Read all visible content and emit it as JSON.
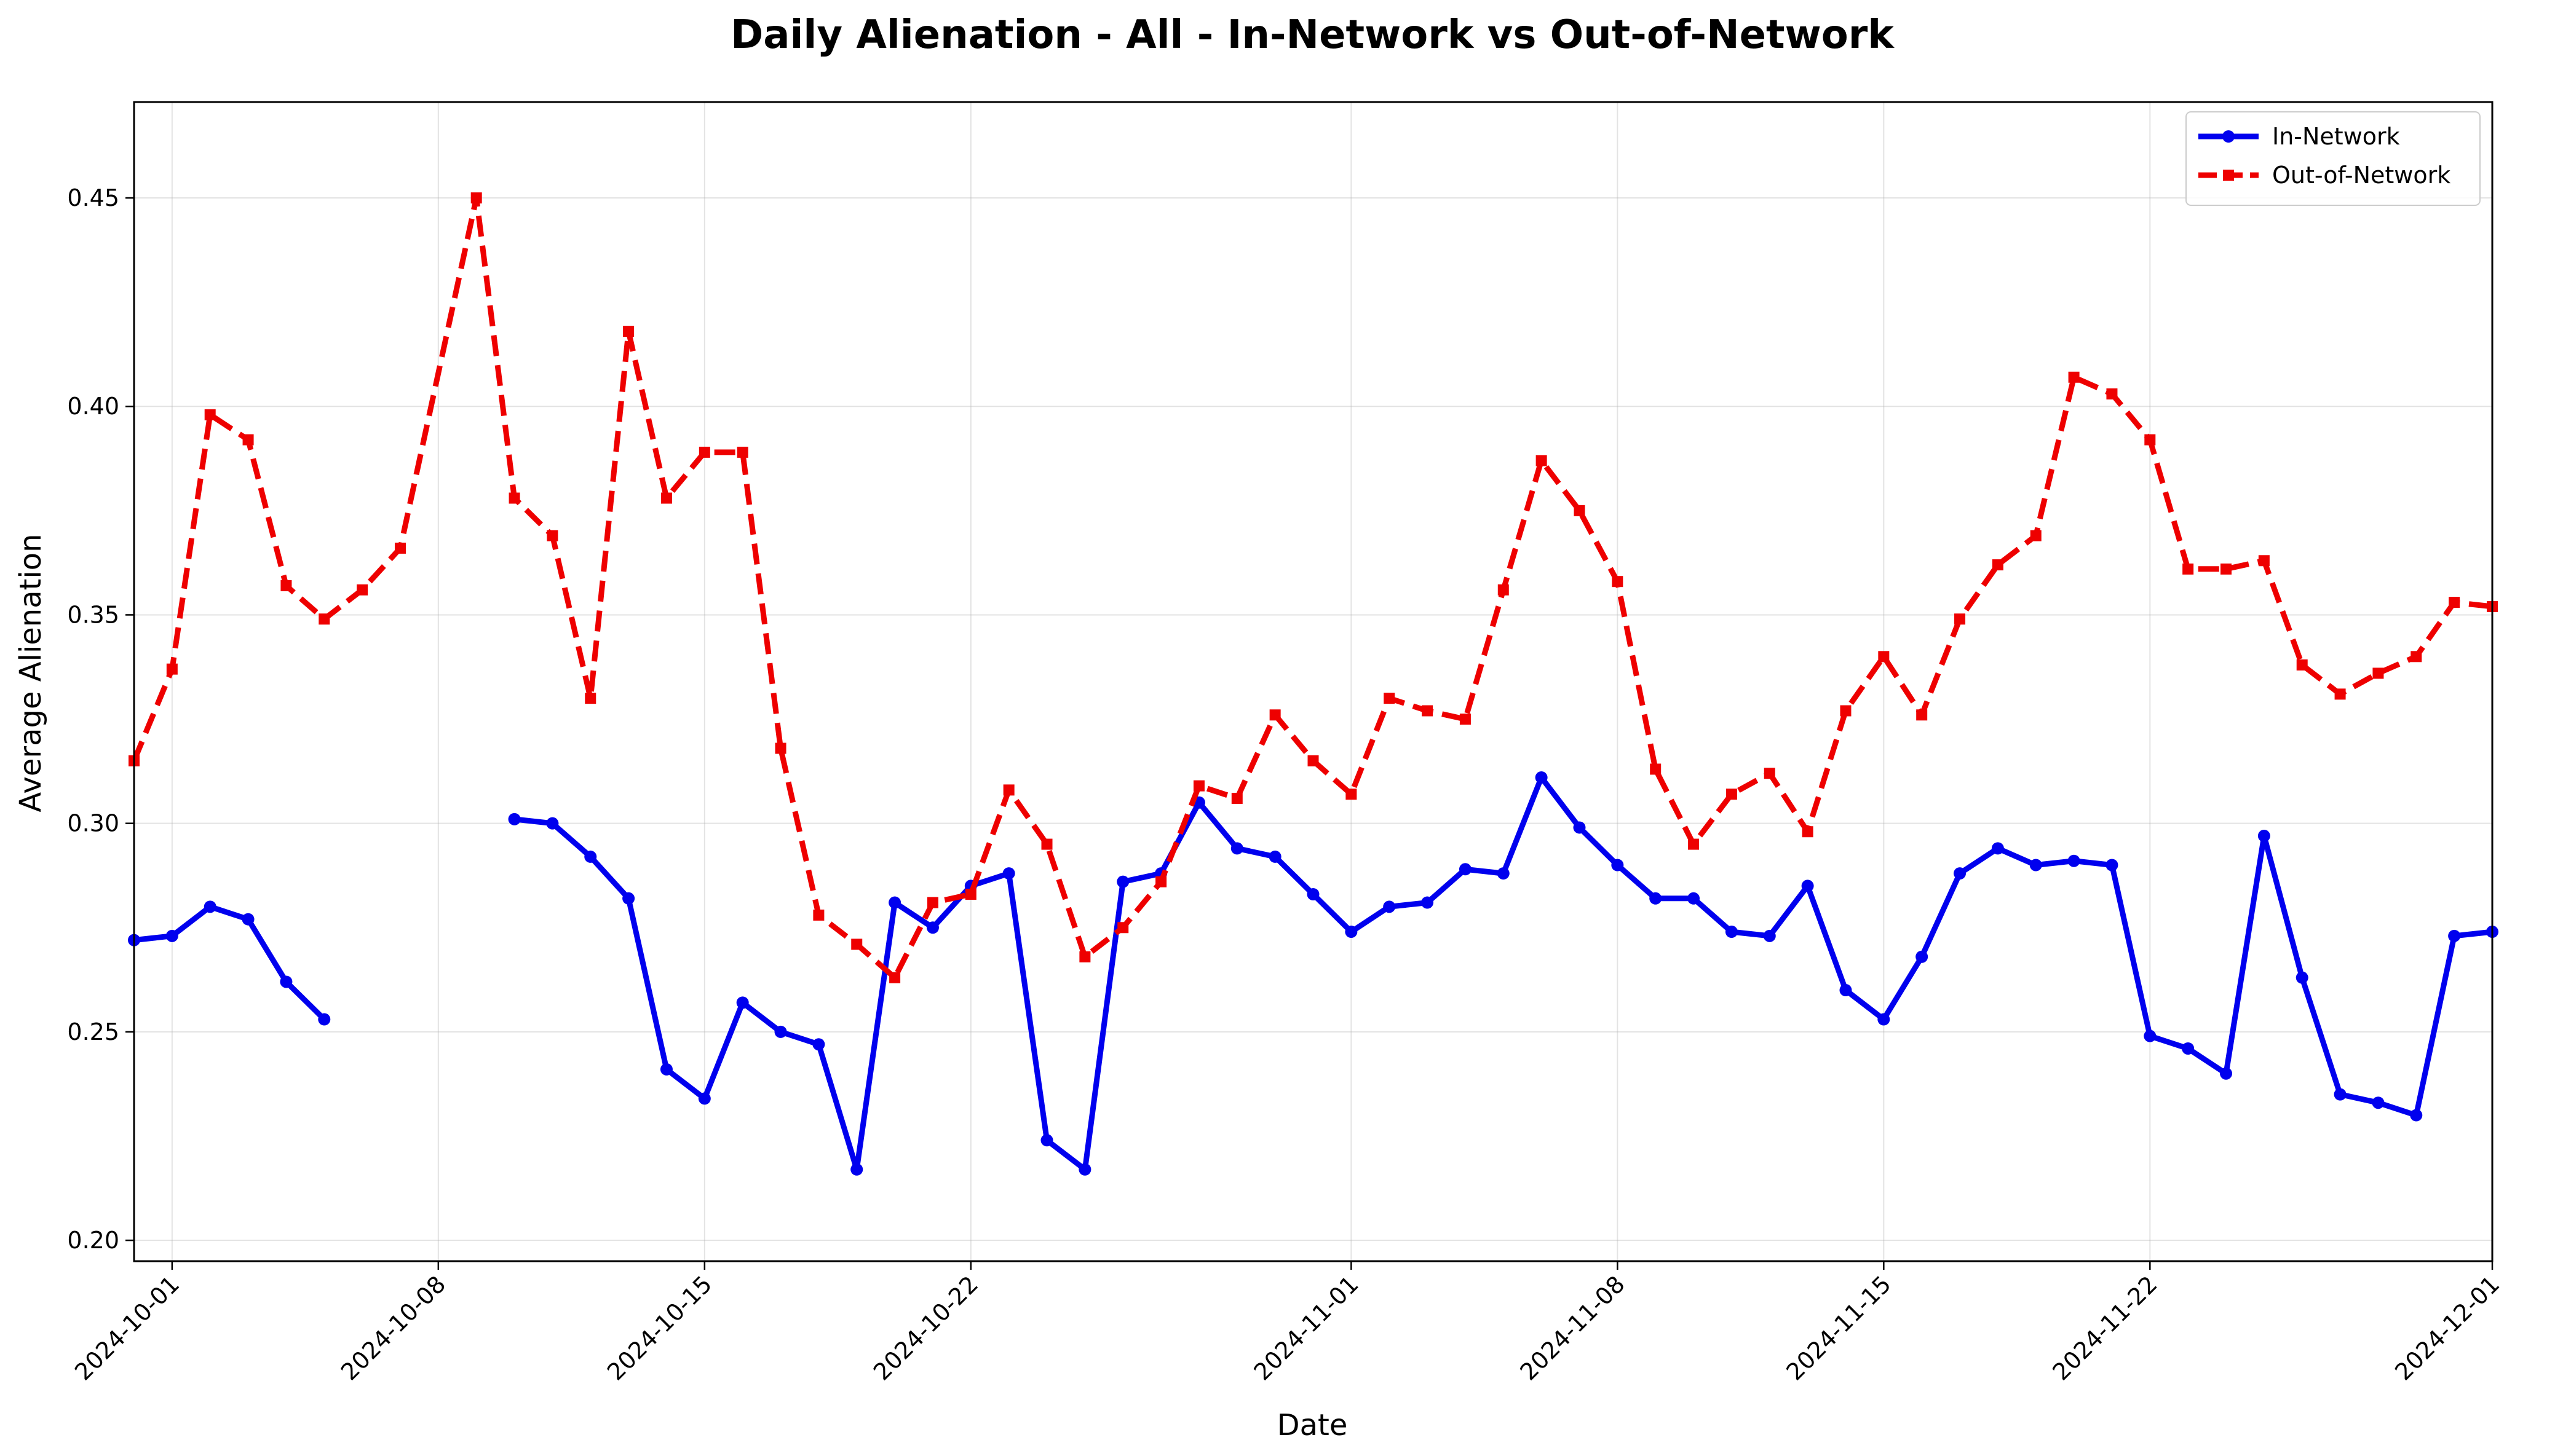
{
  "chart_data": {
    "type": "line",
    "title": "Daily Alienation - All - In-Network vs Out-of-Network",
    "xlabel": "Date",
    "ylabel": "Average Alienation",
    "x_start": "2024-09-30",
    "x_end": "2024-12-01",
    "ylim": [
      0.195,
      0.473
    ],
    "yticks": [
      0.2,
      0.25,
      0.3,
      0.35,
      0.4,
      0.45
    ],
    "ytick_labels": [
      "0.20",
      "0.25",
      "0.30",
      "0.35",
      "0.40",
      "0.45"
    ],
    "xticks": [
      "2024-10-01",
      "2024-10-08",
      "2024-10-15",
      "2024-10-22",
      "2024-11-01",
      "2024-11-08",
      "2024-11-15",
      "2024-11-22",
      "2024-12-01"
    ],
    "grid": true,
    "legend_position": "top-right",
    "series": [
      {
        "name": "In-Network",
        "color": "#0000ee",
        "style": "solid",
        "marker": "circle",
        "points": [
          [
            "2024-09-30",
            0.272
          ],
          [
            "2024-10-01",
            0.273
          ],
          [
            "2024-10-02",
            0.28
          ],
          [
            "2024-10-03",
            0.277
          ],
          [
            "2024-10-04",
            0.262
          ],
          [
            "2024-10-05",
            0.253
          ],
          [
            "2024-10-06",
            null
          ],
          [
            "2024-10-10",
            0.301
          ],
          [
            "2024-10-11",
            0.3
          ],
          [
            "2024-10-12",
            0.292
          ],
          [
            "2024-10-13",
            0.282
          ],
          [
            "2024-10-14",
            0.241
          ],
          [
            "2024-10-15",
            0.234
          ],
          [
            "2024-10-16",
            0.257
          ],
          [
            "2024-10-17",
            0.25
          ],
          [
            "2024-10-18",
            0.247
          ],
          [
            "2024-10-19",
            0.217
          ],
          [
            "2024-10-20",
            0.281
          ],
          [
            "2024-10-21",
            0.275
          ],
          [
            "2024-10-22",
            0.285
          ],
          [
            "2024-10-23",
            0.288
          ],
          [
            "2024-10-24",
            0.224
          ],
          [
            "2024-10-25",
            0.217
          ],
          [
            "2024-10-26",
            0.286
          ],
          [
            "2024-10-27",
            0.288
          ],
          [
            "2024-10-28",
            0.305
          ],
          [
            "2024-10-29",
            0.294
          ],
          [
            "2024-10-30",
            0.292
          ],
          [
            "2024-10-31",
            0.283
          ],
          [
            "2024-11-01",
            0.274
          ],
          [
            "2024-11-02",
            0.28
          ],
          [
            "2024-11-03",
            0.281
          ],
          [
            "2024-11-04",
            0.289
          ],
          [
            "2024-11-05",
            0.288
          ],
          [
            "2024-11-06",
            0.311
          ],
          [
            "2024-11-07",
            0.299
          ],
          [
            "2024-11-08",
            0.29
          ],
          [
            "2024-11-09",
            0.282
          ],
          [
            "2024-11-10",
            0.282
          ],
          [
            "2024-11-11",
            0.274
          ],
          [
            "2024-11-12",
            0.273
          ],
          [
            "2024-11-13",
            0.285
          ],
          [
            "2024-11-14",
            0.26
          ],
          [
            "2024-11-15",
            0.253
          ],
          [
            "2024-11-16",
            0.268
          ],
          [
            "2024-11-17",
            0.288
          ],
          [
            "2024-11-18",
            0.294
          ],
          [
            "2024-11-19",
            0.29
          ],
          [
            "2024-11-20",
            0.291
          ],
          [
            "2024-11-21",
            0.29
          ],
          [
            "2024-11-22",
            0.249
          ],
          [
            "2024-11-23",
            0.246
          ],
          [
            "2024-11-24",
            0.24
          ],
          [
            "2024-11-25",
            0.297
          ],
          [
            "2024-11-26",
            0.263
          ],
          [
            "2024-11-27",
            0.235
          ],
          [
            "2024-11-28",
            0.233
          ],
          [
            "2024-11-29",
            0.23
          ],
          [
            "2024-11-30",
            0.273
          ],
          [
            "2024-12-01",
            0.274
          ]
        ]
      },
      {
        "name": "Out-of-Network",
        "color": "#ee0000",
        "style": "dashed",
        "marker": "square",
        "points": [
          [
            "2024-09-30",
            0.315
          ],
          [
            "2024-10-01",
            0.337
          ],
          [
            "2024-10-02",
            0.398
          ],
          [
            "2024-10-03",
            0.392
          ],
          [
            "2024-10-04",
            0.357
          ],
          [
            "2024-10-05",
            0.349
          ],
          [
            "2024-10-06",
            0.356
          ],
          [
            "2024-10-07",
            0.366
          ],
          [
            "2024-10-09",
            0.45
          ],
          [
            "2024-10-10",
            0.378
          ],
          [
            "2024-10-11",
            0.369
          ],
          [
            "2024-10-12",
            0.33
          ],
          [
            "2024-10-13",
            0.418
          ],
          [
            "2024-10-14",
            0.378
          ],
          [
            "2024-10-15",
            0.389
          ],
          [
            "2024-10-16",
            0.389
          ],
          [
            "2024-10-17",
            0.318
          ],
          [
            "2024-10-18",
            0.278
          ],
          [
            "2024-10-19",
            0.271
          ],
          [
            "2024-10-20",
            0.263
          ],
          [
            "2024-10-21",
            0.281
          ],
          [
            "2024-10-22",
            0.283
          ],
          [
            "2024-10-23",
            0.308
          ],
          [
            "2024-10-24",
            0.295
          ],
          [
            "2024-10-25",
            0.268
          ],
          [
            "2024-10-26",
            0.275
          ],
          [
            "2024-10-27",
            0.286
          ],
          [
            "2024-10-28",
            0.309
          ],
          [
            "2024-10-29",
            0.306
          ],
          [
            "2024-10-30",
            0.326
          ],
          [
            "2024-10-31",
            0.315
          ],
          [
            "2024-11-01",
            0.307
          ],
          [
            "2024-11-02",
            0.33
          ],
          [
            "2024-11-03",
            0.327
          ],
          [
            "2024-11-04",
            0.325
          ],
          [
            "2024-11-05",
            0.356
          ],
          [
            "2024-11-06",
            0.387
          ],
          [
            "2024-11-07",
            0.375
          ],
          [
            "2024-11-08",
            0.358
          ],
          [
            "2024-11-09",
            0.313
          ],
          [
            "2024-11-10",
            0.295
          ],
          [
            "2024-11-11",
            0.307
          ],
          [
            "2024-11-12",
            0.312
          ],
          [
            "2024-11-13",
            0.298
          ],
          [
            "2024-11-14",
            0.327
          ],
          [
            "2024-11-15",
            0.34
          ],
          [
            "2024-11-16",
            0.326
          ],
          [
            "2024-11-17",
            0.349
          ],
          [
            "2024-11-18",
            0.362
          ],
          [
            "2024-11-19",
            0.369
          ],
          [
            "2024-11-20",
            0.407
          ],
          [
            "2024-11-21",
            0.403
          ],
          [
            "2024-11-22",
            0.392
          ],
          [
            "2024-11-23",
            0.361
          ],
          [
            "2024-11-24",
            0.361
          ],
          [
            "2024-11-25",
            0.363
          ],
          [
            "2024-11-26",
            0.338
          ],
          [
            "2024-11-27",
            0.331
          ],
          [
            "2024-11-28",
            0.336
          ],
          [
            "2024-11-29",
            0.34
          ],
          [
            "2024-11-30",
            0.353
          ],
          [
            "2024-12-01",
            0.352
          ]
        ]
      }
    ]
  }
}
